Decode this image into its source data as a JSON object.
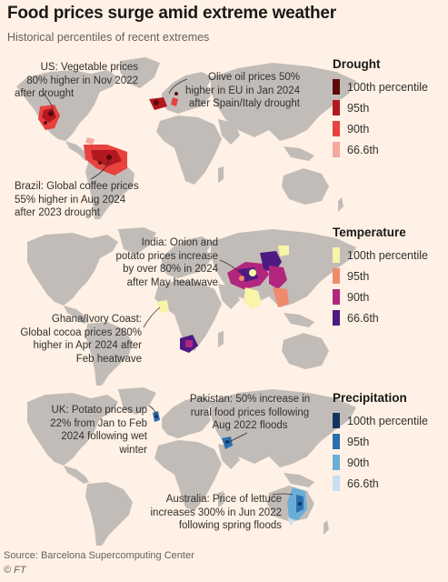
{
  "header": {
    "title": "Food prices surge amid extreme weather",
    "subtitle": "Historical percentiles of recent extremes"
  },
  "panels": [
    {
      "legend": {
        "title": "Drought",
        "items": [
          {
            "label": "100th percentile",
            "color": "#5a0a0a"
          },
          {
            "label": "95th",
            "color": "#b3171f"
          },
          {
            "label": "90th",
            "color": "#e8423f"
          },
          {
            "label": "66.6th",
            "color": "#f5a89e"
          }
        ]
      },
      "annotations": [
        {
          "lines": [
            "US: Vegetable prices",
            "80% higher in Nov 2022",
            "after drought"
          ]
        },
        {
          "lines": [
            "Olive oil prices 50%",
            "higher in EU in Jan 2024",
            "after Spain/Italy drought"
          ]
        },
        {
          "lines": [
            "Brazil: Global coffee prices",
            "55% higher in Aug 2024",
            "after 2023 drought"
          ]
        }
      ]
    },
    {
      "legend": {
        "title": "Temperature",
        "items": [
          {
            "label": "100th percentile",
            "color": "#f8f4a8"
          },
          {
            "label": "95th",
            "color": "#f08a6c"
          },
          {
            "label": "90th",
            "color": "#b2267e"
          },
          {
            "label": "66.6th",
            "color": "#4c1a82"
          }
        ]
      },
      "annotations": [
        {
          "lines": [
            "India: Onion and",
            "potato prices increase",
            "by over 80% in 2024",
            "after May heatwave"
          ]
        },
        {
          "lines": [
            "Ghana/Ivory Coast:",
            "Global cocoa prices 280%",
            "higher in Apr 2024 after",
            "Feb heatwave"
          ]
        }
      ]
    },
    {
      "legend": {
        "title": "Precipitation",
        "items": [
          {
            "label": "100th percentile",
            "color": "#14345e"
          },
          {
            "label": "95th",
            "color": "#2a6fb0"
          },
          {
            "label": "90th",
            "color": "#6aaed8"
          },
          {
            "label": "66.6th",
            "color": "#c7dff0"
          }
        ]
      },
      "annotations": [
        {
          "lines": [
            "UK: Potato prices up",
            "22% from Jan to Feb",
            "2024 following wet",
            "winter"
          ]
        },
        {
          "lines": [
            "Pakistan: 50% increase in",
            "rural food prices following",
            "Aug 2022 floods"
          ]
        },
        {
          "lines": [
            "Australia: Price of lettuce",
            "increases 300% in Jun 2022",
            "following spring floods"
          ]
        }
      ]
    }
  ],
  "footer": {
    "source": "Source: Barcelona Supercomputing Center",
    "credit": "© FT"
  },
  "colors": {
    "land": "#c2bcb8",
    "background": "#fff1e5"
  }
}
